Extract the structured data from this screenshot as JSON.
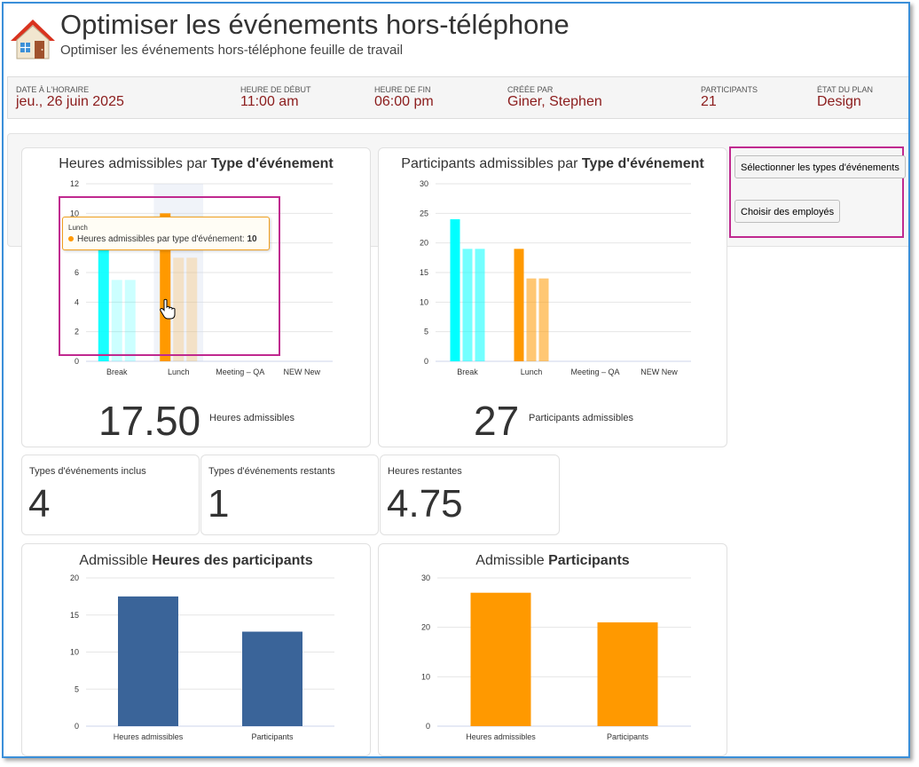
{
  "header": {
    "title": "Optimiser les événements hors-téléphone",
    "subtitle": "Optimiser les événements hors-téléphone feuille de travail"
  },
  "infobar": {
    "fields": [
      {
        "label": "DATE À L'HORAIRE",
        "value": "jeu., 26 juin 2025"
      },
      {
        "label": "HEURE DE DÉBUT",
        "value": "11:00 am"
      },
      {
        "label": "HEURE DE FIN",
        "value": "06:00 pm"
      },
      {
        "label": "CRÉÉE PAR",
        "value": "Giner, Stephen"
      },
      {
        "label": "PARTICIPANTS",
        "value": "21"
      },
      {
        "label": "ÉTAT DU PLAN",
        "value": "Design"
      }
    ]
  },
  "buttons": {
    "select_event_types": "Sélectionner les types d'événements",
    "choose_employees": "Choisir des employés"
  },
  "colors": {
    "cyan": "#00ffff",
    "orange": "#ff9900",
    "blue": "#3a6499",
    "accent_red": "#8b1c1c",
    "highlight": "#c0298f"
  },
  "cards": {
    "hours": {
      "title_prefix": "Heures admissibles par ",
      "title_bold": "Type d'événement",
      "big_number": "17.50",
      "caption": "Heures admissibles"
    },
    "participants": {
      "title_prefix": "Participants admissibles par ",
      "title_bold": "Type d'événement",
      "big_number": "27",
      "caption": "Participants admissibles"
    },
    "participant_hours": {
      "title_prefix": "Admissible ",
      "title_bold": "Heures des participants"
    },
    "participants_total": {
      "title_prefix": "Admissible ",
      "title_bold": "Participants"
    }
  },
  "stats": [
    {
      "label": "Types d'événements inclus",
      "value": "4"
    },
    {
      "label": "Types d'événements restants",
      "value": "1"
    },
    {
      "label": "Heures restantes",
      "value": "4.75"
    }
  ],
  "tooltip": {
    "category": "Lunch",
    "series_label": "Heures admissibles par type d'événement:",
    "value": "10"
  },
  "chart_data": [
    {
      "type": "bar",
      "categories": [
        "Break",
        "Lunch",
        "Meeting – QA",
        "NEW New"
      ],
      "series": [
        {
          "name": "Heures admissibles par type d'événement",
          "values": [
            8,
            10,
            0,
            0
          ]
        },
        {
          "values": [
            5.5,
            7,
            0,
            0
          ]
        },
        {
          "values": [
            5.5,
            7,
            0,
            0
          ]
        }
      ],
      "ylim": [
        0,
        12
      ],
      "yticks": [
        0,
        2,
        4,
        6,
        8,
        10,
        12
      ]
    },
    {
      "type": "bar",
      "categories": [
        "Break",
        "Lunch",
        "Meeting – QA",
        "NEW New"
      ],
      "series": [
        {
          "values": [
            24,
            19,
            0,
            0
          ]
        },
        {
          "values": [
            19,
            14,
            0,
            0
          ]
        },
        {
          "values": [
            19,
            14,
            0,
            0
          ]
        }
      ],
      "ylim": [
        0,
        30
      ],
      "yticks": [
        0,
        5,
        10,
        15,
        20,
        25,
        30
      ]
    },
    {
      "type": "bar",
      "categories": [
        "Heures admissibles",
        "Participants"
      ],
      "values": [
        17.5,
        12.75
      ],
      "ylim": [
        0,
        20
      ],
      "yticks": [
        0,
        5,
        10,
        15,
        20
      ]
    },
    {
      "type": "bar",
      "categories": [
        "Heures admissibles",
        "Participants"
      ],
      "values": [
        27,
        21
      ],
      "ylim": [
        0,
        30
      ],
      "yticks": [
        0,
        10,
        20,
        30
      ]
    }
  ]
}
